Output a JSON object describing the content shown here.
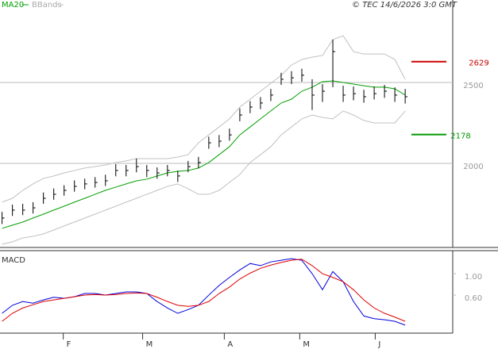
{
  "chart_data": [
    {
      "type": "ohlc",
      "source": "© TEC 14/6/2026 3:0 GMT",
      "x": [
        0,
        1,
        2,
        3,
        4,
        5,
        6,
        7,
        8,
        9,
        10,
        11,
        12,
        13,
        14,
        15,
        16,
        17,
        18,
        19,
        20,
        21,
        22,
        23,
        24,
        25,
        26,
        27,
        28,
        29,
        30,
        31,
        32,
        33,
        34,
        35,
        36,
        37,
        38,
        39
      ],
      "high": [
        1700,
        1745,
        1750,
        1760,
        1820,
        1845,
        1865,
        1895,
        1905,
        1915,
        1930,
        1995,
        1990,
        2030,
        1990,
        1975,
        1990,
        1955,
        2015,
        2040,
        2165,
        2175,
        2215,
        2340,
        2385,
        2410,
        2460,
        2560,
        2570,
        2585,
        2520,
        2490,
        2765,
        2480,
        2475,
        2455,
        2475,
        2485,
        2470,
        2460
      ],
      "low": [
        1625,
        1675,
        1680,
        1690,
        1750,
        1775,
        1800,
        1825,
        1840,
        1850,
        1860,
        1920,
        1920,
        1945,
        1915,
        1905,
        1920,
        1885,
        1945,
        1970,
        2090,
        2100,
        2140,
        2260,
        2310,
        2335,
        2385,
        2485,
        2490,
        2505,
        2330,
        2380,
        2471,
        2380,
        2390,
        2375,
        2395,
        2405,
        2380,
        2370
      ],
      "close": [
        1662,
        1711,
        1711,
        1725,
        1784,
        1809,
        1833,
        1858,
        1873,
        1882,
        1892,
        1956,
        1956,
        1980,
        1956,
        1941,
        1956,
        1922,
        1980,
        2005,
        2127,
        2137,
        2176,
        2299,
        2348,
        2373,
        2422,
        2520,
        2529,
        2545,
        2422,
        2446,
        2691,
        2422,
        2431,
        2412,
        2431,
        2446,
        2422,
        2412
      ],
      "series": [
        {
          "name": "MA20",
          "color": "#00a000",
          "values": [
            1598,
            1618,
            1637,
            1662,
            1686,
            1711,
            1735,
            1760,
            1784,
            1809,
            1833,
            1853,
            1873,
            1892,
            1902,
            1922,
            1941,
            1951,
            1956,
            1971,
            2005,
            2054,
            2103,
            2176,
            2225,
            2275,
            2324,
            2373,
            2397,
            2446,
            2471,
            2505,
            2510,
            2500,
            2490,
            2480,
            2471,
            2471,
            2461,
            2422
          ]
        },
        {
          "name": "BBands",
          "color": "#c0c0c0",
          "upper": [
            1760,
            1784,
            1833,
            1873,
            1907,
            1922,
            1941,
            1956,
            1971,
            1980,
            1990,
            2005,
            2015,
            2029,
            2029,
            2029,
            2029,
            2039,
            2054,
            2127,
            2176,
            2225,
            2275,
            2348,
            2397,
            2446,
            2495,
            2544,
            2608,
            2642,
            2657,
            2667,
            2765,
            2789,
            2691,
            2676,
            2676,
            2676,
            2642,
            2520
          ],
          "lower": [
            1500,
            1515,
            1539,
            1549,
            1564,
            1588,
            1613,
            1637,
            1662,
            1686,
            1711,
            1735,
            1760,
            1784,
            1809,
            1833,
            1858,
            1873,
            1843,
            1809,
            1809,
            1833,
            1882,
            1931,
            2005,
            2054,
            2103,
            2176,
            2225,
            2275,
            2299,
            2284,
            2275,
            2324,
            2299,
            2265,
            2250,
            2250,
            2250,
            2324
          ]
        }
      ],
      "levels": [
        {
          "value": 2629,
          "color": "#cc0000"
        },
        {
          "value": 2178,
          "color": "#009900"
        }
      ],
      "ylim": [
        1480,
        3010
      ],
      "yticks": [
        2000,
        2500
      ],
      "xlim": [
        -0.2,
        43.6
      ],
      "grid": true
    },
    {
      "type": "line",
      "title": "MACD",
      "x": [
        0,
        1,
        2,
        3,
        4,
        5,
        6,
        7,
        8,
        9,
        10,
        11,
        12,
        13,
        14,
        15,
        16,
        17,
        18,
        19,
        20,
        21,
        22,
        23,
        24,
        25,
        26,
        27,
        28,
        29,
        30,
        31,
        32,
        33,
        34,
        35,
        36,
        37,
        38,
        39
      ],
      "series": [
        {
          "color": "#0000dd",
          "values": [
            0.26,
            0.41,
            0.48,
            0.45,
            0.51,
            0.56,
            0.54,
            0.57,
            0.63,
            0.63,
            0.6,
            0.63,
            0.66,
            0.66,
            0.63,
            0.48,
            0.36,
            0.26,
            0.33,
            0.41,
            0.6,
            0.78,
            0.93,
            1.07,
            1.19,
            1.15,
            1.22,
            1.25,
            1.28,
            1.25,
            1.0,
            0.7,
            1.04,
            0.85,
            0.48,
            0.21,
            0.16,
            0.14,
            0.11,
            0.04
          ]
        },
        {
          "color": "#dd0000",
          "values": [
            0.11,
            0.26,
            0.36,
            0.42,
            0.48,
            0.51,
            0.54,
            0.57,
            0.6,
            0.61,
            0.6,
            0.61,
            0.63,
            0.64,
            0.63,
            0.56,
            0.48,
            0.41,
            0.39,
            0.41,
            0.48,
            0.63,
            0.75,
            0.9,
            1.01,
            1.1,
            1.16,
            1.21,
            1.25,
            1.27,
            1.15,
            1.0,
            0.93,
            0.85,
            0.7,
            0.51,
            0.36,
            0.26,
            0.19,
            0.11
          ]
        }
      ],
      "ylim": [
        -0.11,
        1.43
      ],
      "yticks": [
        {
          "value": 1,
          "label": "1.00"
        },
        {
          "value": 0.6,
          "label": "0.60"
        }
      ],
      "xlim": [
        -0.2,
        43.6
      ],
      "xticks": [
        {
          "value": 5.92,
          "label": "F"
        },
        {
          "value": 13.6,
          "label": "M"
        },
        {
          "value": 21.5,
          "label": "A"
        },
        {
          "value": 28.8,
          "label": "M"
        },
        {
          "value": 36.1,
          "label": "J"
        }
      ]
    }
  ]
}
